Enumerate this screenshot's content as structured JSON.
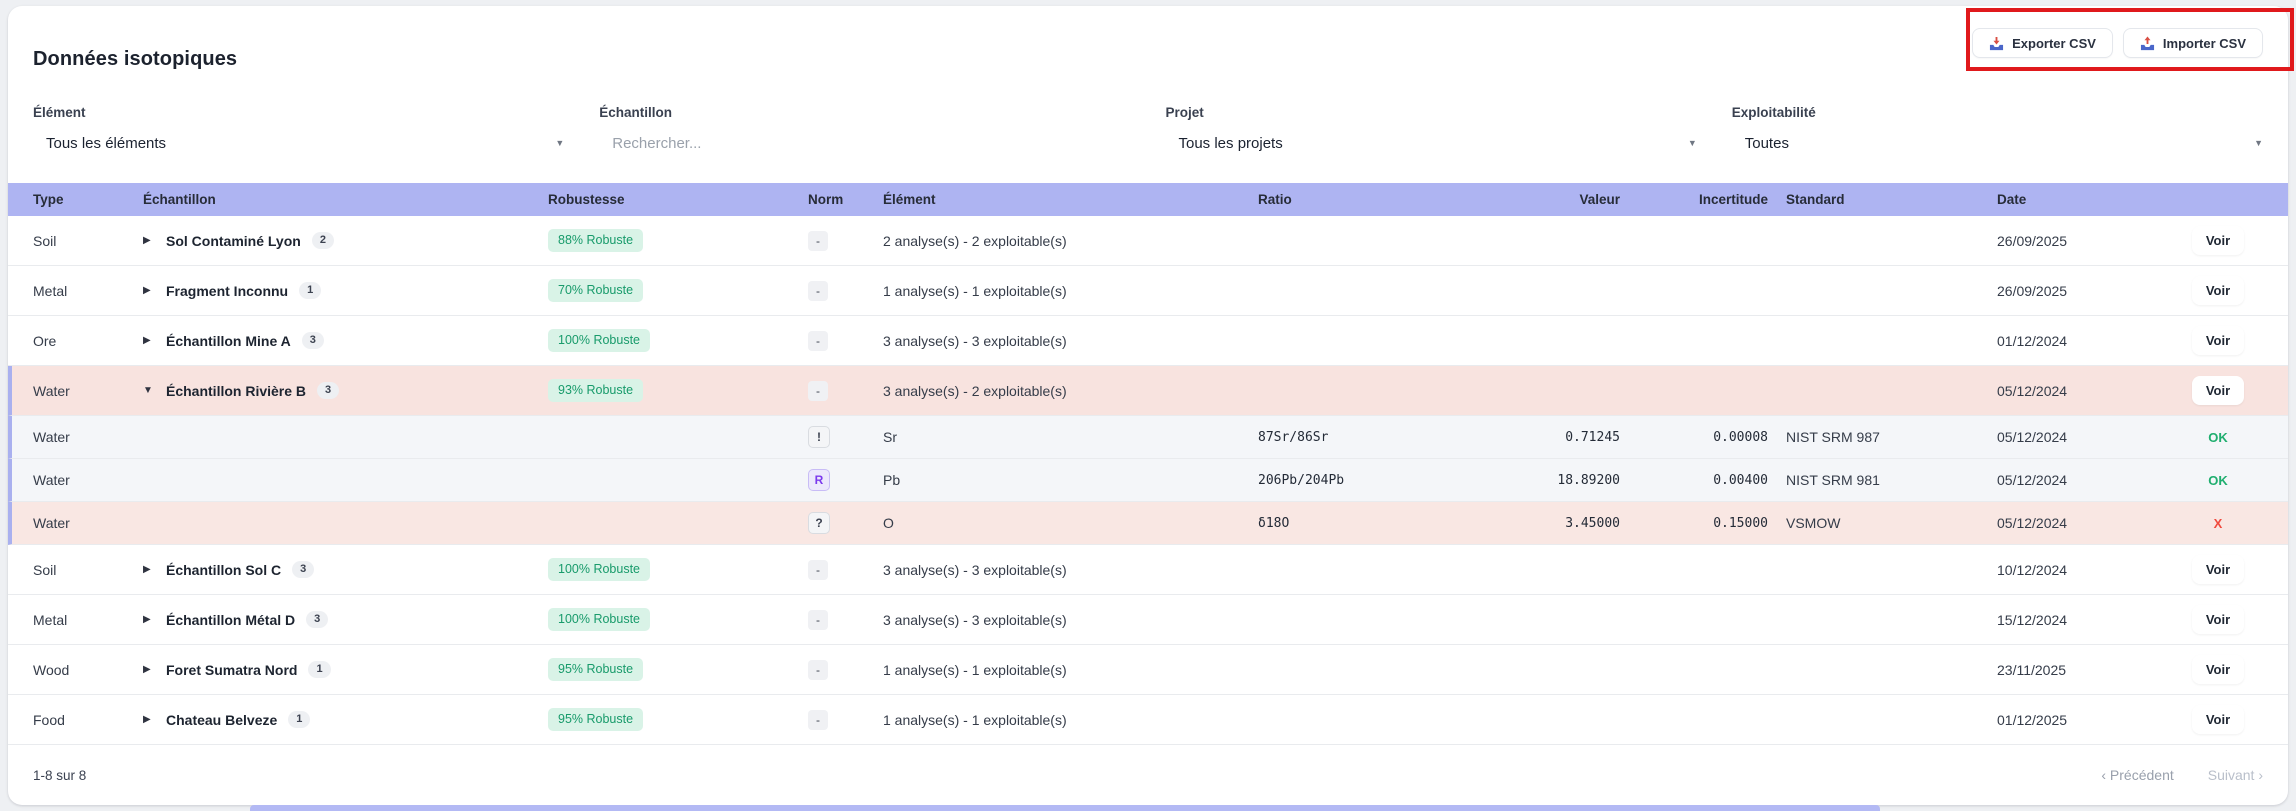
{
  "header": {
    "title": "Données isotopiques",
    "export_label": "Exporter CSV",
    "import_label": "Importer CSV"
  },
  "filters": [
    {
      "label": "Élément",
      "control": "select",
      "value": "Tous les éléments"
    },
    {
      "label": "Échantillon",
      "control": "search",
      "placeholder": "Rechercher..."
    },
    {
      "label": "Projet",
      "control": "select",
      "value": "Tous les projets"
    },
    {
      "label": "Exploitabilité",
      "control": "select",
      "value": "Toutes"
    }
  ],
  "table": {
    "columns": [
      "Type",
      "Échantillon",
      "Robustesse",
      "Norm",
      "Élément",
      "Ratio",
      "Valeur",
      "Incertitude",
      "Standard",
      "Date",
      ""
    ],
    "rows": [
      {
        "type": "Soil",
        "sample": "Sol Contaminé Lyon",
        "count": "2",
        "robustesse": "88% Robuste",
        "norm": "-",
        "element": "2 analyse(s) - 2 exploitable(s)",
        "date": "26/09/2025",
        "action": "Voir",
        "expanded": false
      },
      {
        "type": "Metal",
        "sample": "Fragment Inconnu",
        "count": "1",
        "robustesse": "70% Robuste",
        "norm": "-",
        "element": "1 analyse(s) - 1 exploitable(s)",
        "date": "26/09/2025",
        "action": "Voir",
        "expanded": false
      },
      {
        "type": "Ore",
        "sample": "Échantillon Mine A",
        "count": "3",
        "robustesse": "100% Robuste",
        "norm": "-",
        "element": "3 analyse(s) - 3 exploitable(s)",
        "date": "01/12/2024",
        "action": "Voir",
        "expanded": false
      },
      {
        "type": "Water",
        "sample": "Échantillon Rivière B",
        "count": "3",
        "robustesse": "93% Robuste",
        "norm": "-",
        "element": "3 analyse(s) - 2 exploitable(s)",
        "date": "05/12/2024",
        "action": "Voir",
        "expanded": true,
        "highlight": "pink",
        "children": [
          {
            "type": "Water",
            "norm": "!",
            "norm_style": "gray",
            "element": "Sr",
            "ratio": "87Sr/86Sr",
            "valeur": "0.71245",
            "incertitude": "0.00008",
            "standard": "NIST SRM 987",
            "date": "05/12/2024",
            "status": "OK",
            "status_color": "green",
            "shade": "gray"
          },
          {
            "type": "Water",
            "norm": "R",
            "norm_style": "purple",
            "element": "Pb",
            "ratio": "206Pb/204Pb",
            "valeur": "18.89200",
            "incertitude": "0.00400",
            "standard": "NIST SRM 981",
            "date": "05/12/2024",
            "status": "OK",
            "status_color": "green",
            "shade": "gray"
          },
          {
            "type": "Water",
            "norm": "?",
            "norm_style": "gray",
            "element": "O",
            "ratio": "δ18O",
            "valeur": "3.45000",
            "incertitude": "0.15000",
            "standard": "VSMOW",
            "date": "05/12/2024",
            "status": "X",
            "status_color": "red",
            "shade": "pink"
          }
        ]
      },
      {
        "type": "Soil",
        "sample": "Échantillon Sol C",
        "count": "3",
        "robustesse": "100% Robuste",
        "norm": "-",
        "element": "3 analyse(s) - 3 exploitable(s)",
        "date": "10/12/2024",
        "action": "Voir",
        "expanded": false
      },
      {
        "type": "Metal",
        "sample": "Échantillon Métal D",
        "count": "3",
        "robustesse": "100% Robuste",
        "norm": "-",
        "element": "3 analyse(s) - 3 exploitable(s)",
        "date": "15/12/2024",
        "action": "Voir",
        "expanded": false
      },
      {
        "type": "Wood",
        "sample": "Foret Sumatra Nord",
        "count": "1",
        "robustesse": "95% Robuste",
        "norm": "-",
        "element": "1 analyse(s) - 1 exploitable(s)",
        "date": "23/11/2025",
        "action": "Voir",
        "expanded": false
      },
      {
        "type": "Food",
        "sample": "Chateau Belveze",
        "count": "1",
        "robustesse": "95% Robuste",
        "norm": "-",
        "element": "1 analyse(s) - 1 exploitable(s)",
        "date": "01/12/2025",
        "action": "Voir",
        "expanded": false
      }
    ]
  },
  "pagination": {
    "range_label": "1-8 sur 8",
    "prev_label": "‹ Précédent",
    "next_label": "Suivant ›"
  },
  "colors": {
    "table_header_bg": "#aeb4f2",
    "robust_badge_bg": "#d9f3e7",
    "robust_badge_text": "#189b6b",
    "pink_row_bg": "#f8e3df",
    "status_ok": "#1fae6f",
    "status_error": "#f04a3e",
    "annotation_red": "#e0191c"
  }
}
